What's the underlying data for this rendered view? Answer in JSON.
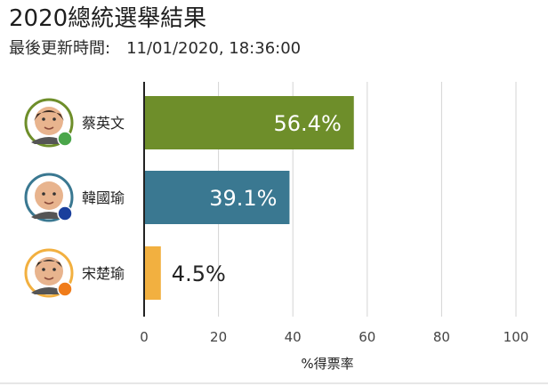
{
  "header": {
    "title": "2020總統選舉結果",
    "updated_label": "最後更新時間:",
    "updated_value": "11/01/2020, 18:36:00"
  },
  "chart_data": {
    "type": "bar",
    "orientation": "horizontal",
    "title": "2020總統選舉結果",
    "xlabel": "%得票率",
    "xlim": [
      0,
      100
    ],
    "xticks": [
      0,
      20,
      40,
      60,
      80,
      100
    ],
    "grid": true,
    "categories": [
      "蔡英文",
      "韓國瑜",
      "宋楚瑜"
    ],
    "values": [
      56.4,
      39.1,
      4.5
    ],
    "labels": [
      "56.4%",
      "39.1%",
      "4.5%"
    ],
    "colors": [
      "#6e8e2a",
      "#3a7891",
      "#f2b040"
    ],
    "label_inside": [
      true,
      true,
      false
    ],
    "avatars": [
      {
        "ring": "#6e8e2a",
        "badge": "#4aa64a",
        "badge_icon": "leaf-icon"
      },
      {
        "ring": "#3a7891",
        "badge": "#1a3f9c",
        "badge_icon": "sun-icon"
      },
      {
        "ring": "#f2b040",
        "badge": "#f07c1a",
        "badge_icon": "party-badge-icon"
      }
    ]
  }
}
